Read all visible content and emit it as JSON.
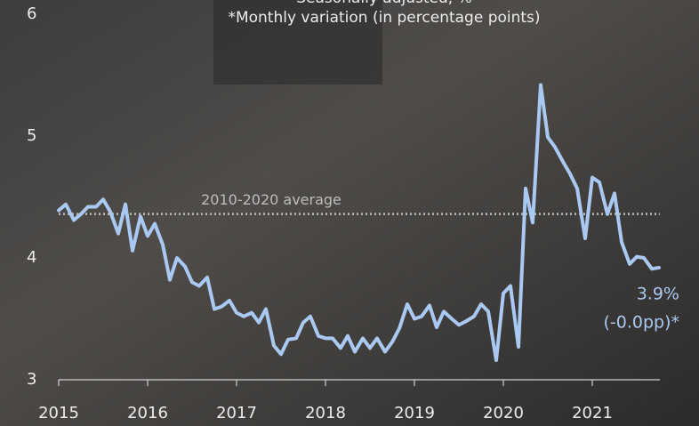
{
  "chart_data": {
    "type": "line",
    "title": "Seasonally adjusted, %",
    "subtitle": "*Monthly variation (in percentage points)",
    "x": [
      2015.0,
      2015.08,
      2015.17,
      2015.25,
      2015.33,
      2015.42,
      2015.5,
      2015.58,
      2015.67,
      2015.75,
      2015.83,
      2015.92,
      2016.0,
      2016.08,
      2016.17,
      2016.25,
      2016.33,
      2016.42,
      2016.5,
      2016.58,
      2016.67,
      2016.75,
      2016.83,
      2016.92,
      2017.0,
      2017.08,
      2017.17,
      2017.25,
      2017.33,
      2017.42,
      2017.5,
      2017.58,
      2017.67,
      2017.75,
      2017.83,
      2017.92,
      2018.0,
      2018.08,
      2018.17,
      2018.25,
      2018.33,
      2018.42,
      2018.5,
      2018.58,
      2018.67,
      2018.75,
      2018.83,
      2018.92,
      2019.0,
      2019.08,
      2019.17,
      2019.25,
      2019.33,
      2019.42,
      2019.5,
      2019.58,
      2019.67,
      2019.75,
      2019.83,
      2019.92,
      2020.0,
      2020.08,
      2020.17,
      2020.25,
      2020.33,
      2020.42,
      2020.5,
      2020.58,
      2020.67,
      2020.75,
      2020.83,
      2020.92,
      2021.0,
      2021.08,
      2021.17,
      2021.25,
      2021.33,
      2021.42,
      2021.5,
      2021.58,
      2021.67,
      2021.75
    ],
    "series": [
      {
        "color": "#a9c9f2",
        "values": [
          4.39,
          4.44,
          4.31,
          4.36,
          4.42,
          4.42,
          4.48,
          4.38,
          4.2,
          4.44,
          4.06,
          4.34,
          4.18,
          4.28,
          4.11,
          3.82,
          4.0,
          3.93,
          3.8,
          3.77,
          3.84,
          3.58,
          3.6,
          3.65,
          3.55,
          3.52,
          3.55,
          3.47,
          3.58,
          3.28,
          3.21,
          3.33,
          3.34,
          3.47,
          3.52,
          3.36,
          3.34,
          3.34,
          3.26,
          3.36,
          3.23,
          3.34,
          3.26,
          3.34,
          3.23,
          3.31,
          3.42,
          3.62,
          3.5,
          3.52,
          3.61,
          3.43,
          3.56,
          3.5,
          3.45,
          3.48,
          3.52,
          3.62,
          3.56,
          3.16,
          3.71,
          3.77,
          3.27,
          4.57,
          4.29,
          5.42,
          4.99,
          4.91,
          4.79,
          4.69,
          4.57,
          4.16,
          4.66,
          4.62,
          4.36,
          4.53,
          4.13,
          3.95,
          4.01,
          4.0,
          3.91,
          3.92
        ]
      }
    ],
    "reference_line": {
      "value": 4.36,
      "label": "2010-2020 average",
      "color": "#bdbdbd"
    },
    "annotations": [
      "3.9%",
      "(-0.0pp)*"
    ],
    "xlim": [
      2015,
      2021.76
    ],
    "xticks": [
      2015,
      2016,
      2017,
      2018,
      2019,
      2020,
      2021
    ],
    "ylim": [
      3,
      6
    ],
    "yticks": [
      3,
      4,
      5,
      6
    ]
  }
}
